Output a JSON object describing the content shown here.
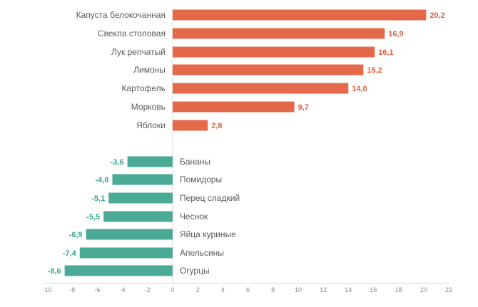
{
  "chart_data": {
    "type": "bar",
    "orientation": "horizontal",
    "title": "",
    "xlabel": "",
    "ylabel": "",
    "xlim": [
      -10,
      22
    ],
    "xticks": [
      -10,
      -8,
      -6,
      -4,
      -2,
      0,
      2,
      4,
      6,
      8,
      10,
      12,
      14,
      16,
      18,
      20,
      22
    ],
    "grid": false,
    "legend": "none",
    "positive_color": "#E4694A",
    "negative_color": "#4AAA96",
    "positive_label_color": "#E0603A",
    "negative_label_color": "#3BA58F",
    "positive": {
      "categories": [
        "Капуста белокочанная",
        "Свекла столовая",
        "Лук репчатый",
        "Лимоны",
        "Картофель",
        "Морковь",
        "Яблоки"
      ],
      "values": [
        20.2,
        16.9,
        16.1,
        15.2,
        14.0,
        9.7,
        2.8
      ],
      "labels": [
        "20,2",
        "16,9",
        "16,1",
        "15,2",
        "14,0",
        "9,7",
        "2,8"
      ]
    },
    "negative": {
      "categories": [
        "Бананы",
        "Помидоры",
        "Перец сладкий",
        "Чеснок",
        "Яйца куриные",
        "Апельсины",
        "Огурцы"
      ],
      "values": [
        -3.6,
        -4.8,
        -5.1,
        -5.5,
        -6.9,
        -7.4,
        -8.6
      ],
      "labels": [
        "-3,6",
        "-4,8",
        "-5,1",
        "-5,5",
        "-6,9",
        "-7,4",
        "-8,6"
      ]
    }
  }
}
